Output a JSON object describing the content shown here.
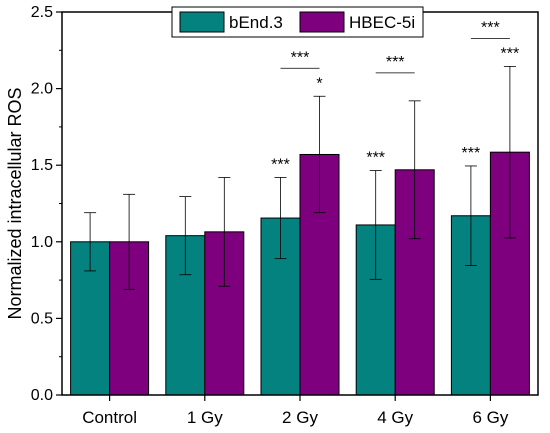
{
  "chart_data": {
    "type": "bar",
    "title": "",
    "xlabel": "",
    "ylabel": "Normalized intracellular ROS",
    "ylim": [
      0,
      2.5
    ],
    "yticks": [
      "0.0",
      "0.5",
      "1.0",
      "1.5",
      "2.0",
      "2.5"
    ],
    "categories": [
      "Control",
      "1 Gy",
      "2 Gy",
      "4 Gy",
      "6 Gy"
    ],
    "series": [
      {
        "name": "bEnd.3",
        "color": "#038280",
        "values": [
          1.0,
          1.04,
          1.155,
          1.11,
          1.17
        ],
        "error": [
          0.19,
          0.255,
          0.265,
          0.355,
          0.325
        ]
      },
      {
        "name": "HBEC-5i",
        "color": "#7f007e",
        "values": [
          1.0,
          1.065,
          1.57,
          1.47,
          1.585
        ],
        "error": [
          0.31,
          0.355,
          0.38,
          0.45,
          0.56
        ]
      }
    ],
    "legend_position": "top-center",
    "grid": false,
    "annotations": {
      "above_bend3": [
        "",
        "",
        "***",
        "***",
        "***"
      ],
      "above_hbec": [
        "",
        "",
        "*",
        "",
        "***"
      ],
      "comparison": [
        "",
        "",
        "***",
        "***",
        "***"
      ]
    }
  }
}
